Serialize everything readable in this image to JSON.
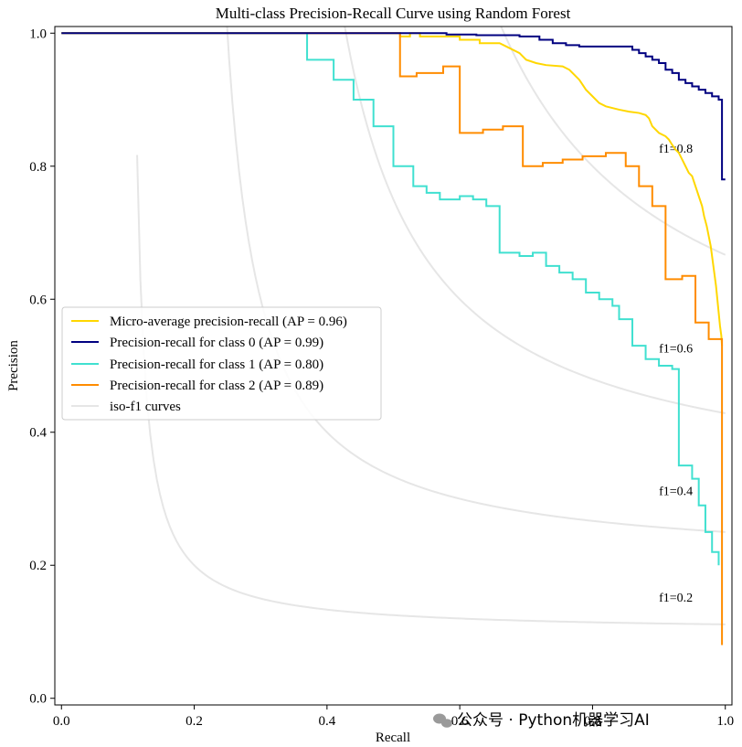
{
  "chart_data": {
    "type": "line",
    "title": "Multi-class Precision-Recall Curve using Random Forest",
    "xlabel": "Recall",
    "ylabel": "Precision",
    "xlim": [
      -0.01,
      1.01
    ],
    "ylim": [
      -0.01,
      1.01
    ],
    "xticks": [
      0.0,
      0.2,
      0.4,
      0.6,
      0.8,
      1.0
    ],
    "xtick_labels": [
      "0.0",
      "0.2",
      "0.4",
      "0.6",
      "0.8",
      "1.0"
    ],
    "yticks": [
      0.0,
      0.2,
      0.4,
      0.6,
      0.8,
      1.0
    ],
    "ytick_labels": [
      "0.0",
      "0.2",
      "0.4",
      "0.6",
      "0.8",
      "1.0"
    ],
    "grid": false,
    "legend_position": "center-left",
    "iso_f1": {
      "values": [
        0.2,
        0.4,
        0.6,
        0.8
      ],
      "labels": [
        "f1=0.2",
        "f1=0.4",
        "f1=0.6",
        "f1=0.8"
      ],
      "color": "#e6e6e6",
      "legend_label": "iso-f1 curves"
    },
    "series": [
      {
        "name": "Micro-average precision-recall (AP = 0.96)",
        "color": "#ffd700",
        "points": [
          [
            0,
            1.0
          ],
          [
            0.51,
            1.0
          ],
          [
            0.51,
            0.995
          ],
          [
            0.525,
            0.995
          ],
          [
            0.525,
            1.0
          ],
          [
            0.54,
            1.0
          ],
          [
            0.54,
            0.995
          ],
          [
            0.6,
            0.995
          ],
          [
            0.6,
            0.99
          ],
          [
            0.63,
            0.99
          ],
          [
            0.63,
            0.985
          ],
          [
            0.66,
            0.985
          ],
          [
            0.67,
            0.98
          ],
          [
            0.69,
            0.97
          ],
          [
            0.7,
            0.96
          ],
          [
            0.715,
            0.955
          ],
          [
            0.73,
            0.952
          ],
          [
            0.755,
            0.95
          ],
          [
            0.765,
            0.945
          ],
          [
            0.77,
            0.94
          ],
          [
            0.78,
            0.93
          ],
          [
            0.79,
            0.915
          ],
          [
            0.8,
            0.905
          ],
          [
            0.81,
            0.895
          ],
          [
            0.82,
            0.89
          ],
          [
            0.84,
            0.885
          ],
          [
            0.855,
            0.882
          ],
          [
            0.87,
            0.88
          ],
          [
            0.88,
            0.877
          ],
          [
            0.885,
            0.872
          ],
          [
            0.89,
            0.86
          ],
          [
            0.9,
            0.85
          ],
          [
            0.91,
            0.845
          ],
          [
            0.915,
            0.84
          ],
          [
            0.92,
            0.832
          ],
          [
            0.925,
            0.825
          ],
          [
            0.93,
            0.82
          ],
          [
            0.935,
            0.81
          ],
          [
            0.94,
            0.8
          ],
          [
            0.945,
            0.79
          ],
          [
            0.95,
            0.785
          ],
          [
            0.955,
            0.77
          ],
          [
            0.96,
            0.755
          ],
          [
            0.965,
            0.74
          ],
          [
            0.968,
            0.725
          ],
          [
            0.972,
            0.71
          ],
          [
            0.975,
            0.695
          ],
          [
            0.978,
            0.68
          ],
          [
            0.98,
            0.665
          ],
          [
            0.982,
            0.65
          ],
          [
            0.984,
            0.635
          ],
          [
            0.986,
            0.62
          ],
          [
            0.988,
            0.6
          ],
          [
            0.99,
            0.58
          ],
          [
            0.992,
            0.56
          ],
          [
            0.994,
            0.545
          ],
          [
            0.995,
            0.53
          ]
        ]
      },
      {
        "name": "Precision-recall for class 0 (AP = 0.99)",
        "color": "#000080",
        "points": [
          [
            0,
            1.0
          ],
          [
            0.58,
            1.0
          ],
          [
            0.58,
            0.998
          ],
          [
            0.625,
            0.998
          ],
          [
            0.625,
            0.997
          ],
          [
            0.69,
            0.997
          ],
          [
            0.69,
            0.995
          ],
          [
            0.72,
            0.995
          ],
          [
            0.72,
            0.99
          ],
          [
            0.74,
            0.99
          ],
          [
            0.74,
            0.985
          ],
          [
            0.76,
            0.985
          ],
          [
            0.76,
            0.982
          ],
          [
            0.78,
            0.982
          ],
          [
            0.78,
            0.98
          ],
          [
            0.86,
            0.98
          ],
          [
            0.86,
            0.975
          ],
          [
            0.87,
            0.975
          ],
          [
            0.87,
            0.97
          ],
          [
            0.88,
            0.97
          ],
          [
            0.88,
            0.965
          ],
          [
            0.89,
            0.965
          ],
          [
            0.89,
            0.96
          ],
          [
            0.9,
            0.96
          ],
          [
            0.9,
            0.955
          ],
          [
            0.91,
            0.955
          ],
          [
            0.91,
            0.945
          ],
          [
            0.92,
            0.945
          ],
          [
            0.92,
            0.94
          ],
          [
            0.93,
            0.94
          ],
          [
            0.93,
            0.93
          ],
          [
            0.94,
            0.93
          ],
          [
            0.94,
            0.925
          ],
          [
            0.95,
            0.925
          ],
          [
            0.95,
            0.92
          ],
          [
            0.96,
            0.92
          ],
          [
            0.96,
            0.915
          ],
          [
            0.97,
            0.915
          ],
          [
            0.97,
            0.91
          ],
          [
            0.98,
            0.91
          ],
          [
            0.98,
            0.905
          ],
          [
            0.99,
            0.905
          ],
          [
            0.99,
            0.9
          ],
          [
            0.995,
            0.9
          ],
          [
            0.995,
            0.78
          ],
          [
            1.0,
            0.78
          ]
        ]
      },
      {
        "name": "Precision-recall for class 1 (AP = 0.80)",
        "color": "#40e0d0",
        "points": [
          [
            0,
            1.0
          ],
          [
            0.37,
            1.0
          ],
          [
            0.37,
            0.96
          ],
          [
            0.41,
            0.96
          ],
          [
            0.41,
            0.93
          ],
          [
            0.44,
            0.93
          ],
          [
            0.44,
            0.9
          ],
          [
            0.47,
            0.9
          ],
          [
            0.47,
            0.86
          ],
          [
            0.5,
            0.86
          ],
          [
            0.5,
            0.8
          ],
          [
            0.53,
            0.8
          ],
          [
            0.53,
            0.77
          ],
          [
            0.55,
            0.77
          ],
          [
            0.55,
            0.76
          ],
          [
            0.57,
            0.76
          ],
          [
            0.57,
            0.75
          ],
          [
            0.6,
            0.75
          ],
          [
            0.6,
            0.755
          ],
          [
            0.62,
            0.755
          ],
          [
            0.62,
            0.75
          ],
          [
            0.64,
            0.75
          ],
          [
            0.64,
            0.74
          ],
          [
            0.66,
            0.74
          ],
          [
            0.66,
            0.67
          ],
          [
            0.69,
            0.67
          ],
          [
            0.69,
            0.665
          ],
          [
            0.71,
            0.665
          ],
          [
            0.71,
            0.67
          ],
          [
            0.73,
            0.67
          ],
          [
            0.73,
            0.65
          ],
          [
            0.75,
            0.65
          ],
          [
            0.75,
            0.64
          ],
          [
            0.77,
            0.64
          ],
          [
            0.77,
            0.63
          ],
          [
            0.79,
            0.63
          ],
          [
            0.79,
            0.61
          ],
          [
            0.81,
            0.61
          ],
          [
            0.81,
            0.6
          ],
          [
            0.83,
            0.6
          ],
          [
            0.83,
            0.59
          ],
          [
            0.84,
            0.59
          ],
          [
            0.84,
            0.57
          ],
          [
            0.86,
            0.57
          ],
          [
            0.86,
            0.53
          ],
          [
            0.88,
            0.53
          ],
          [
            0.88,
            0.51
          ],
          [
            0.9,
            0.51
          ],
          [
            0.9,
            0.5
          ],
          [
            0.92,
            0.5
          ],
          [
            0.92,
            0.495
          ],
          [
            0.93,
            0.495
          ],
          [
            0.93,
            0.35
          ],
          [
            0.95,
            0.35
          ],
          [
            0.95,
            0.33
          ],
          [
            0.96,
            0.33
          ],
          [
            0.96,
            0.29
          ],
          [
            0.97,
            0.29
          ],
          [
            0.97,
            0.25
          ],
          [
            0.98,
            0.25
          ],
          [
            0.98,
            0.22
          ],
          [
            0.99,
            0.22
          ],
          [
            0.99,
            0.2
          ]
        ]
      },
      {
        "name": "Precision-recall for class 2 (AP = 0.89)",
        "color": "#ff8c00",
        "points": [
          [
            0,
            1.0
          ],
          [
            0.51,
            1.0
          ],
          [
            0.51,
            0.935
          ],
          [
            0.535,
            0.935
          ],
          [
            0.535,
            0.94
          ],
          [
            0.575,
            0.94
          ],
          [
            0.575,
            0.95
          ],
          [
            0.6,
            0.95
          ],
          [
            0.6,
            0.85
          ],
          [
            0.635,
            0.85
          ],
          [
            0.635,
            0.855
          ],
          [
            0.665,
            0.855
          ],
          [
            0.665,
            0.86
          ],
          [
            0.695,
            0.86
          ],
          [
            0.695,
            0.8
          ],
          [
            0.725,
            0.8
          ],
          [
            0.725,
            0.805
          ],
          [
            0.755,
            0.805
          ],
          [
            0.755,
            0.81
          ],
          [
            0.785,
            0.81
          ],
          [
            0.785,
            0.815
          ],
          [
            0.82,
            0.815
          ],
          [
            0.82,
            0.82
          ],
          [
            0.85,
            0.82
          ],
          [
            0.85,
            0.8
          ],
          [
            0.87,
            0.8
          ],
          [
            0.87,
            0.77
          ],
          [
            0.89,
            0.77
          ],
          [
            0.89,
            0.74
          ],
          [
            0.91,
            0.74
          ],
          [
            0.91,
            0.63
          ],
          [
            0.935,
            0.63
          ],
          [
            0.935,
            0.635
          ],
          [
            0.955,
            0.635
          ],
          [
            0.955,
            0.565
          ],
          [
            0.975,
            0.565
          ],
          [
            0.975,
            0.54
          ],
          [
            0.995,
            0.54
          ],
          [
            0.995,
            0.08
          ]
        ]
      }
    ]
  },
  "watermark": {
    "text": "公众号 · Python机器学习AI",
    "icon": "wechat-icon"
  }
}
